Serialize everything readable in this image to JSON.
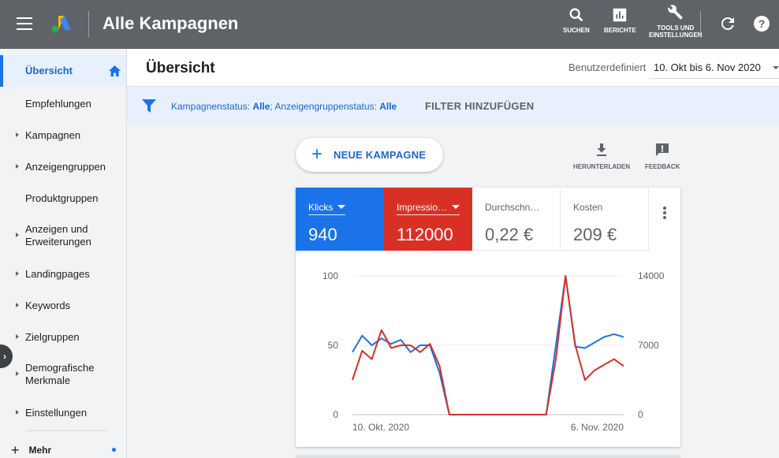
{
  "app": {
    "title": "Alle Kampagnen",
    "colors": {
      "topbar": "#5f6368",
      "accent": "#1a73e8",
      "clicks": "#1a73e8",
      "impressions": "#d93025"
    }
  },
  "toolbar": {
    "search_label": "SUCHEN",
    "reports_label": "BERICHTE",
    "tools_label_1": "TOOLS UND",
    "tools_label_2": "EINSTELLUNGEN",
    "icons": [
      "menu-icon",
      "google-ads-logo",
      "search-icon",
      "reports-icon",
      "wrench-icon",
      "refresh-icon",
      "help-icon"
    ]
  },
  "sidebar": {
    "items": [
      {
        "label": "Übersicht",
        "active": true
      },
      {
        "label": "Empfehlungen"
      },
      {
        "label": "Kampagnen",
        "expandable": true
      },
      {
        "label": "Anzeigengruppen",
        "expandable": true
      },
      {
        "label": "Produktgruppen"
      },
      {
        "label_1": "Anzeigen und",
        "label_2": "Erweiterungen",
        "expandable": true
      },
      {
        "label": "Landingpages",
        "expandable": true
      },
      {
        "label": "Keywords",
        "expandable": true
      },
      {
        "label": "Zielgruppen",
        "expandable": true
      },
      {
        "label_1": "Demografische",
        "label_2": "Merkmale",
        "expandable": true
      },
      {
        "label": "Einstellungen",
        "expandable": true
      }
    ],
    "more_label": "Mehr"
  },
  "header": {
    "title": "Übersicht",
    "range_label": "Benutzerdefiniert",
    "range_value": "10. Okt bis 6. Nov 2020"
  },
  "filter": {
    "text_1": "Kampagnenstatus: ",
    "value_1": "Alle",
    "text_2": "; Anzeigengruppenstatus: ",
    "value_2": "Alle",
    "add_label": "FILTER HINZUFÜGEN"
  },
  "actions": {
    "new_campaign_label": "NEUE KAMPAGNE",
    "download_label": "HERUNTERLADEN",
    "feedback_label": "FEEDBACK"
  },
  "metrics": [
    {
      "label": "Klicks",
      "value": "940"
    },
    {
      "label": "Impressio…",
      "value": "112000"
    },
    {
      "label": "Durchschn…",
      "value": "0,22 €"
    },
    {
      "label": "Kosten",
      "value": "209 €"
    }
  ],
  "chart_data": {
    "type": "line",
    "x_tick_labels": [
      "10. Okt. 2020",
      "6. Nov. 2020"
    ],
    "x_range": [
      "10. Okt. 2020",
      "6. Nov. 2020"
    ],
    "y_left": {
      "ticks": [
        "100",
        "50",
        "0"
      ],
      "range": [
        0,
        100
      ]
    },
    "y_right": {
      "ticks": [
        "14000",
        "7000",
        "0"
      ],
      "range": [
        0,
        14000
      ]
    },
    "grid": true,
    "series": [
      {
        "name": "Klicks",
        "axis": "left",
        "color": "#1a73e8",
        "values": [
          45,
          57,
          50,
          55,
          51,
          54,
          45,
          50,
          50,
          30,
          0,
          0,
          0,
          0,
          0,
          0,
          0,
          0,
          0,
          0,
          0,
          50,
          100,
          49,
          48,
          52,
          56,
          58,
          56
        ]
      },
      {
        "name": "Impressionen",
        "axis": "left",
        "color": "#d93025",
        "values": [
          25,
          46,
          40,
          61,
          48,
          50,
          50,
          45,
          51,
          35,
          0,
          0,
          0,
          0,
          0,
          0,
          0,
          0,
          0,
          0,
          0,
          40,
          100,
          50,
          25,
          32,
          36,
          40,
          35
        ]
      }
    ]
  }
}
